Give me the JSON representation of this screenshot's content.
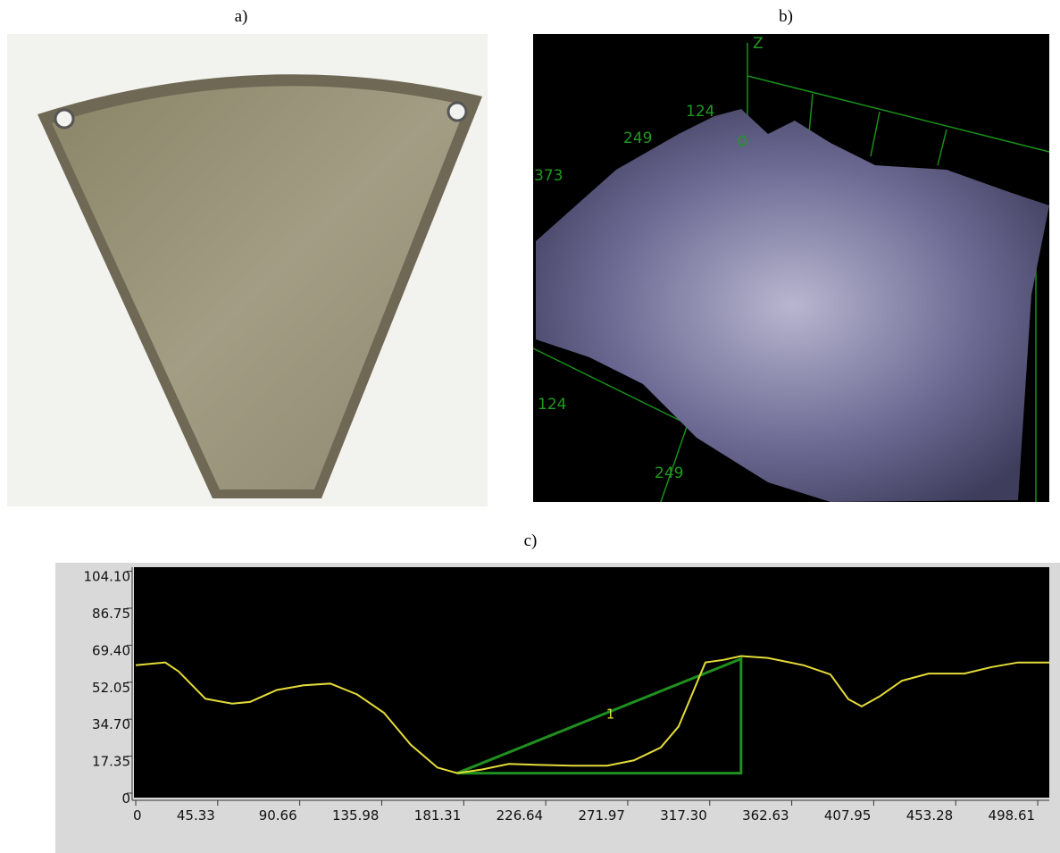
{
  "panels": {
    "a": {
      "label": "a)"
    },
    "b": {
      "label": "b)",
      "axis_labels": [
        "Z",
        "124",
        "249",
        "373",
        "0",
        "124",
        "249"
      ]
    },
    "c": {
      "label": "c)"
    }
  },
  "chart_data": {
    "type": "line",
    "x": [
      0,
      16.3,
      23.7,
      38.5,
      53.3,
      63.2,
      78.0,
      92.8,
      107.6,
      122.4,
      137.2,
      152.0,
      166.8,
      177.7,
      191.5,
      206.3,
      221.1,
      240.9,
      260.6,
      275.4,
      290.2,
      300.1,
      307.5,
      314.9,
      324.8,
      334.6,
      349.4,
      369.2,
      384.0,
      393.9,
      401.3,
      411.2,
      423.5,
      438.3,
      458.1,
      472.9,
      487.7,
      505.0
    ],
    "values": [
      60.0,
      61.3,
      57.1,
      44.3,
      42.0,
      42.8,
      48.4,
      50.6,
      51.4,
      46.3,
      37.7,
      22.7,
      12.0,
      9.4,
      11.1,
      13.7,
      13.3,
      12.9,
      12.9,
      15.4,
      21.4,
      31.3,
      46.3,
      61.3,
      62.5,
      64.3,
      63.4,
      60.0,
      55.7,
      44.1,
      40.7,
      45.4,
      52.7,
      56.1,
      56.1,
      59.1,
      61.3,
      61.3
    ],
    "color": "#e5dc3a",
    "xlim": [
      0,
      505
    ],
    "ylim": [
      0,
      106
    ],
    "xticks": [
      0,
      45.33,
      90.66,
      135.98,
      181.31,
      226.64,
      271.97,
      {
        "value": 317.3,
        "label": "317.30"
      },
      362.63,
      407.95,
      453.28,
      498.61
    ],
    "yticks": [
      0,
      17.35,
      {
        "value": 34.7,
        "label": "34.70"
      },
      52.05,
      {
        "value": 69.4,
        "label": "69.40"
      },
      86.75,
      {
        "value": 104.1,
        "label": "104.10"
      }
    ],
    "triangle": {
      "x": [
        177.7,
        334.6,
        334.6
      ],
      "y": [
        9.4,
        63.0,
        9.4
      ],
      "color": "#1f8f1f"
    },
    "annotation": {
      "text": "1",
      "x": 260,
      "y": 35
    }
  }
}
